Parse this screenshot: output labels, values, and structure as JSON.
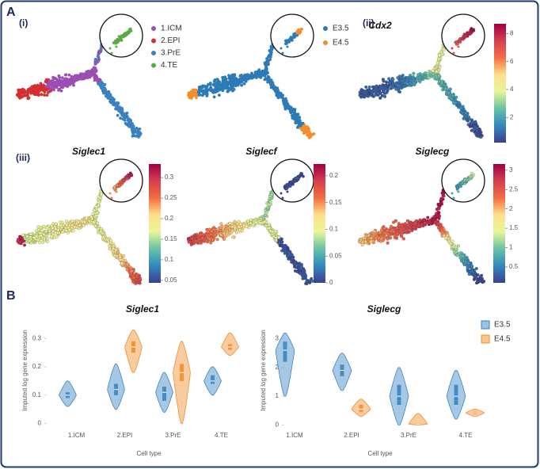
{
  "figure": {
    "panel_labels": [
      "A",
      "(i)",
      "(ii)",
      "(iii)",
      "B"
    ]
  },
  "embedding": {
    "colormap": [
      "#3b3f8f",
      "#3288bd",
      "#66c2a5",
      "#e6f598",
      "#fee08b",
      "#f46d43",
      "#d53e4f",
      "#9e0142"
    ],
    "cell_type": {
      "series": [
        {
          "name": "1.ICM",
          "color": "#9b4fb5"
        },
        {
          "name": "2.EPI",
          "color": "#d62f2f"
        },
        {
          "name": "3.PrE",
          "color": "#3a82c0"
        },
        {
          "name": "4.TE",
          "color": "#5aaa46"
        }
      ]
    },
    "stage": {
      "series": [
        {
          "name": "E3.5",
          "color": "#2c7bb6"
        },
        {
          "name": "E4.5",
          "color": "#f28e2b"
        }
      ]
    },
    "genes": [
      {
        "title": "Cdx2",
        "clim": [
          0.2,
          8.7
        ],
        "ticks": [
          2,
          4,
          6,
          8
        ]
      },
      {
        "title": "Siglec1",
        "clim": [
          0.044,
          0.333
        ],
        "ticks": [
          0.05,
          0.1,
          0.15,
          0.2,
          0.25,
          0.3
        ]
      },
      {
        "title": "Siglecf",
        "clim": [
          0,
          0.222
        ],
        "ticks": [
          0,
          0.05,
          0.1,
          0.15,
          0.2
        ]
      },
      {
        "title": "Siglecg",
        "clim": [
          0.09,
          3.16
        ],
        "ticks": [
          0.5,
          1,
          1.5,
          2,
          2.5,
          3
        ]
      }
    ]
  },
  "chart_data": [
    {
      "type": "violin",
      "title": "Siglec1",
      "xlabel": "Cell type",
      "ylabel": "Imputed log gene expression",
      "categories": [
        "1.ICM",
        "2.EPI",
        "3.PrE",
        "4.TE"
      ],
      "ylim": [
        -0.015,
        0.39
      ],
      "yticks": [
        0,
        0.1,
        0.2,
        0.3
      ],
      "legend": false,
      "series": [
        {
          "color": "#3a86c4",
          "min": [
            0.06,
            0.05,
            0.04,
            0.1
          ],
          "q1": [
            0.09,
            0.1,
            0.08,
            0.14
          ],
          "median": [
            0.1,
            0.12,
            0.11,
            0.15
          ],
          "q3": [
            0.11,
            0.14,
            0.13,
            0.17
          ],
          "max": [
            0.15,
            0.21,
            0.18,
            0.2
          ]
        },
        {
          "color": "#f28e2b",
          "min": [
            null,
            0.18,
            0,
            0.24
          ],
          "q1": [
            null,
            0.25,
            0.15,
            0.26
          ],
          "median": [
            null,
            0.27,
            0.18,
            0.27
          ],
          "q3": [
            null,
            0.29,
            0.21,
            0.28
          ],
          "max": [
            null,
            0.33,
            0.29,
            0.32
          ]
        }
      ]
    },
    {
      "type": "violin",
      "title": "Siglecg",
      "xlabel": "Cell type",
      "ylabel": "Imputed log gene expression",
      "categories": [
        "1.ICM",
        "2.EPI",
        "3.PrE",
        "4.TE"
      ],
      "ylim": [
        -0.1,
        3.9
      ],
      "yticks": [
        0,
        1,
        2,
        3
      ],
      "legend": true,
      "series": [
        {
          "name": "E3.5",
          "color": "#3a86c4",
          "min": [
            1.0,
            1.2,
            0,
            0.2
          ],
          "q1": [
            2.2,
            1.7,
            0.7,
            0.7
          ],
          "median": [
            2.6,
            1.9,
            1.0,
            1.0
          ],
          "q3": [
            2.9,
            2.1,
            1.4,
            1.4
          ],
          "max": [
            3.2,
            2.5,
            2.0,
            1.9
          ]
        },
        {
          "name": "E4.5",
          "color": "#f28e2b",
          "min": [
            null,
            0.3,
            0,
            0.3
          ],
          "q1": [
            null,
            0.45,
            0.02,
            0.38
          ],
          "median": [
            null,
            0.55,
            0.03,
            0.42
          ],
          "q3": [
            null,
            0.7,
            0.05,
            0.46
          ],
          "max": [
            null,
            0.9,
            0.4,
            0.55
          ]
        }
      ]
    }
  ]
}
